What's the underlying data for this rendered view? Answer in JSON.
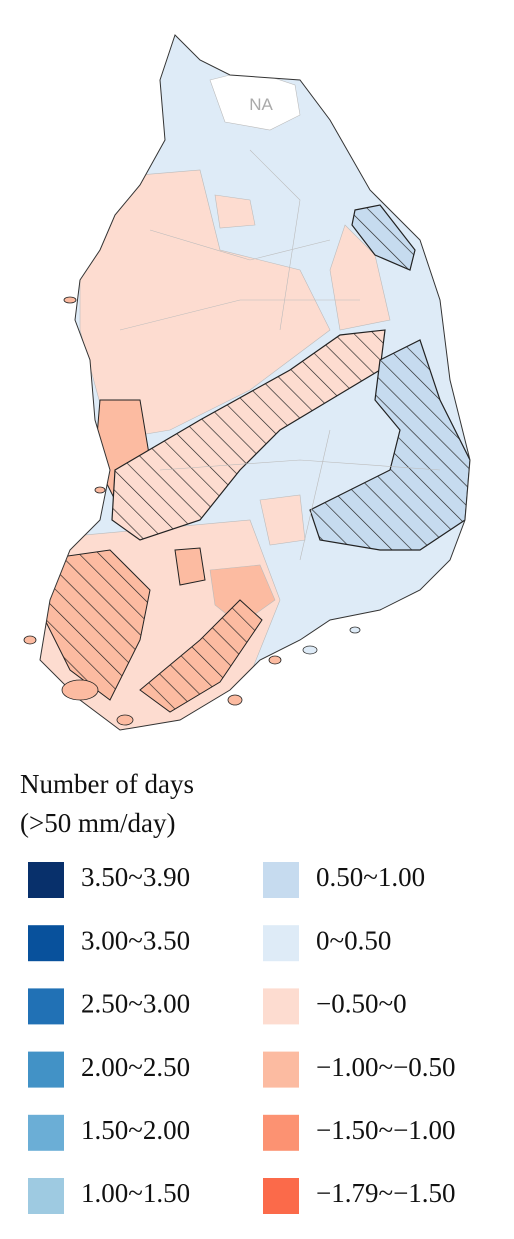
{
  "map": {
    "na_label": "NA"
  },
  "legend": {
    "title": [
      "Number of days",
      "(>50 mm/day)"
    ],
    "items": [
      {
        "label": "3.50~3.90",
        "color": "#08306b"
      },
      {
        "label": "3.00~3.50",
        "color": "#08519c"
      },
      {
        "label": "2.50~3.00",
        "color": "#2171b5"
      },
      {
        "label": "2.00~2.50",
        "color": "#4292c6"
      },
      {
        "label": "1.50~2.00",
        "color": "#6baed6"
      },
      {
        "label": "1.00~1.50",
        "color": "#9ecae1"
      },
      {
        "label": "0.50~1.00",
        "color": "#c6dbef"
      },
      {
        "label": "0~0.50",
        "color": "#deebf7"
      },
      {
        "label": "−0.50~0",
        "color": "#fddcd0"
      },
      {
        "label": "−1.00~−0.50",
        "color": "#fcbba1"
      },
      {
        "label": "−1.50~−1.00",
        "color": "#fc9272"
      },
      {
        "label": "−1.79~−1.50",
        "color": "#fb6a4a"
      }
    ]
  }
}
